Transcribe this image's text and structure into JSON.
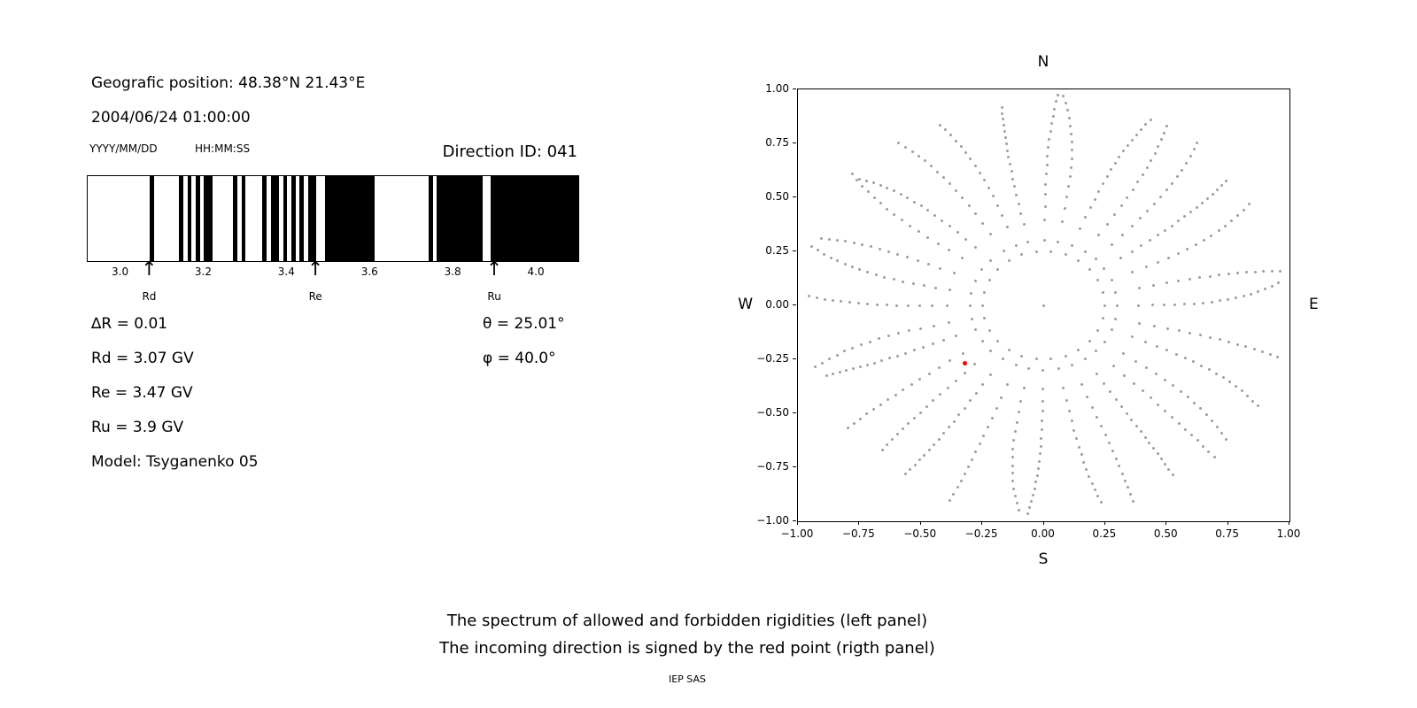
{
  "left_panel": {
    "geo_position": "Geografic position: 48.38°N 21.43°E",
    "datetime": "2004/06/24 01:00:00",
    "date_format_label": "YYYY/MM/DD",
    "time_format_label": "HH:MM:SS",
    "direction_id": "Direction ID: 041",
    "info_lines": {
      "delta_r": "∆R = 0.01",
      "rd": "Rd = 3.07 GV",
      "re": "Re = 3.47 GV",
      "ru": "Ru = 3.9 GV",
      "model": "Model: Tsyganenko 05"
    },
    "angles": {
      "theta": "θ = 25.01°",
      "phi": "φ = 40.0°"
    }
  },
  "caption": {
    "line1": "The spectrum of allowed and forbidden rigidities (left panel)",
    "line2": "The incoming direction is signed by the red point (rigth panel)",
    "credit": "IEP SAS"
  },
  "chart_data": [
    {
      "type": "bar",
      "name": "rigidity-spectrum",
      "description": "Cosmic-ray cutoff penumbra: black bands = allowed rigidities (GV), white = forbidden",
      "x_range": [
        2.92,
        4.1
      ],
      "x_ticks": [
        3.0,
        3.2,
        3.4,
        3.6,
        3.8,
        4.0
      ],
      "x_tick_labels": [
        "3.0",
        "3.2",
        "3.4",
        "3.6",
        "3.8",
        "4.0"
      ],
      "allowed_bands_gv": [
        [
          3.07,
          3.08
        ],
        [
          3.14,
          3.15
        ],
        [
          3.16,
          3.17
        ],
        [
          3.18,
          3.19
        ],
        [
          3.2,
          3.22
        ],
        [
          3.27,
          3.28
        ],
        [
          3.29,
          3.3
        ],
        [
          3.34,
          3.35
        ],
        [
          3.36,
          3.38
        ],
        [
          3.39,
          3.4
        ],
        [
          3.41,
          3.42
        ],
        [
          3.43,
          3.44
        ],
        [
          3.45,
          3.47
        ],
        [
          3.49,
          3.61
        ],
        [
          3.74,
          3.75
        ],
        [
          3.76,
          3.87
        ],
        [
          3.89,
          4.1
        ]
      ],
      "markers": [
        {
          "label": "Rd",
          "value_gv": 3.07
        },
        {
          "label": "Re",
          "value_gv": 3.47
        },
        {
          "label": "Ru",
          "value_gv": 3.9
        }
      ],
      "arrow_glyph": "↑",
      "delta_r_gv": 0.01,
      "rd_gv": 3.07,
      "re_gv": 3.47,
      "ru_gv": 3.9,
      "theta_deg": 25.01,
      "phi_deg": 40.0,
      "model": "Tsyganenko 05",
      "band_color": "#000000"
    },
    {
      "type": "scatter",
      "name": "incoming-direction-map",
      "xlim": [
        -1,
        1
      ],
      "ylim": [
        -1,
        1
      ],
      "x_tick_labels": [
        "−1.00",
        "−0.75",
        "−0.50",
        "−0.25",
        "0.00",
        "0.25",
        "0.50",
        "0.75",
        "1.00"
      ],
      "y_tick_labels": [
        "−1.00",
        "−0.75",
        "−0.50",
        "−0.25",
        "0.00",
        "0.25",
        "0.50",
        "0.75",
        "1.00"
      ],
      "compass": {
        "north": "N",
        "south": "S",
        "east": "E",
        "west": "W"
      },
      "red_point": {
        "x": -0.32,
        "y": -0.27
      },
      "dot_color": "#9e9e9e",
      "red_point_color": "#ff0000",
      "pattern": {
        "spokes": 32,
        "dots_per_spoke": 16,
        "r_inner": 0.3,
        "r_outer": 0.99,
        "ring_radius": 0.25,
        "ring_dots": 26,
        "center_dot": true
      }
    }
  ]
}
